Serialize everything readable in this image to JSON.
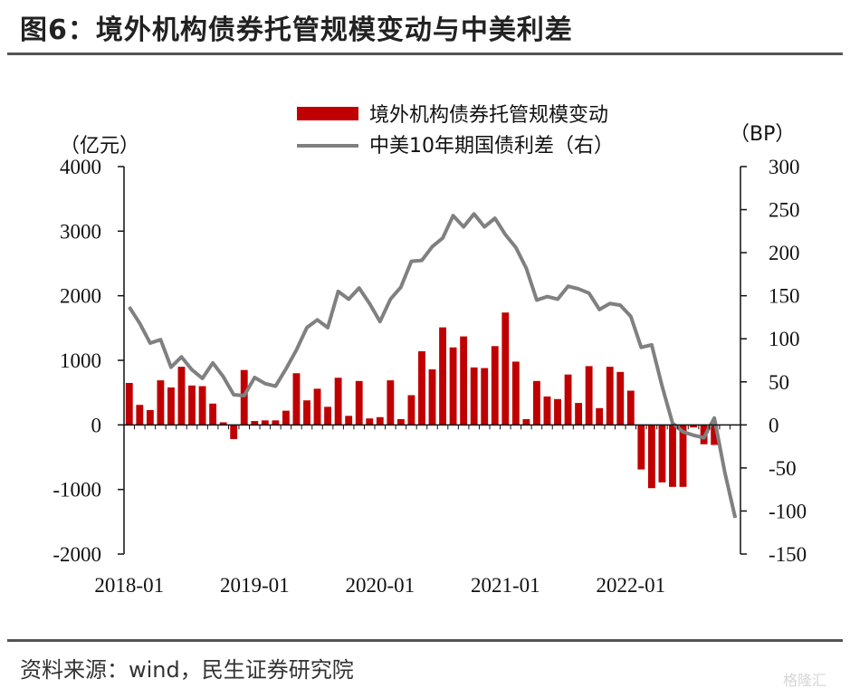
{
  "header": {
    "title": "图6：境外机构债券托管规模变动与中美利差"
  },
  "footer": {
    "source": "资料来源：wind，民生证券研究院",
    "watermark": "格隆汇"
  },
  "chart_data": {
    "type": "bar",
    "left_unit": "（亿元）",
    "right_unit": "（BP）",
    "left_ylim": [
      -2000,
      4000
    ],
    "left_ticks": [
      "4000",
      "3000",
      "2000",
      "1000",
      "0",
      "-1000",
      "-2000"
    ],
    "right_ylim": [
      -150,
      300
    ],
    "right_ticks": [
      "300",
      "250",
      "200",
      "150",
      "100",
      "50",
      "0",
      "-50",
      "-100",
      "-150"
    ],
    "x_tick_labels": [
      "2018-01",
      "2019-01",
      "2020-01",
      "2021-01",
      "2022-01"
    ],
    "legend_position": "top-right",
    "grid": false,
    "categories": [
      "2018-01",
      "2018-02",
      "2018-03",
      "2018-04",
      "2018-05",
      "2018-06",
      "2018-07",
      "2018-08",
      "2018-09",
      "2018-10",
      "2018-11",
      "2018-12",
      "2019-01",
      "2019-02",
      "2019-03",
      "2019-04",
      "2019-05",
      "2019-06",
      "2019-07",
      "2019-08",
      "2019-09",
      "2019-10",
      "2019-11",
      "2019-12",
      "2020-01",
      "2020-02",
      "2020-03",
      "2020-04",
      "2020-05",
      "2020-06",
      "2020-07",
      "2020-08",
      "2020-09",
      "2020-10",
      "2020-11",
      "2020-12",
      "2021-01",
      "2021-02",
      "2021-03",
      "2021-04",
      "2021-05",
      "2021-06",
      "2021-07",
      "2021-08",
      "2021-09",
      "2021-10",
      "2021-11",
      "2021-12",
      "2022-01",
      "2022-02",
      "2022-03",
      "2022-04",
      "2022-05",
      "2022-06",
      "2022-07",
      "2022-08",
      "2022-09",
      "2022-10",
      "2022-11"
    ],
    "series": [
      {
        "name": "境外机构债券托管规模变动",
        "type": "bar",
        "axis": "left",
        "color": "#c00000",
        "values": [
          650,
          310,
          230,
          690,
          580,
          900,
          610,
          600,
          330,
          40,
          -220,
          850,
          60,
          70,
          70,
          220,
          800,
          380,
          560,
          280,
          730,
          140,
          680,
          100,
          120,
          690,
          90,
          460,
          1140,
          860,
          1510,
          1200,
          1370,
          890,
          880,
          1220,
          1740,
          980,
          90,
          680,
          440,
          400,
          780,
          340,
          910,
          260,
          900,
          820,
          530,
          -690,
          -980,
          -890,
          -960,
          -960,
          -40,
          -300,
          -310,
          null,
          null
        ]
      },
      {
        "name": "中美10年期国债利差（右）",
        "type": "line",
        "axis": "right",
        "color": "#808080",
        "values": [
          137,
          118,
          95,
          99,
          67,
          79,
          64,
          54,
          72,
          56,
          35,
          34,
          55,
          48,
          45,
          65,
          87,
          113,
          122,
          113,
          155,
          146,
          159,
          141,
          120,
          146,
          160,
          190,
          191,
          207,
          217,
          243,
          230,
          245,
          230,
          240,
          221,
          206,
          182,
          145,
          149,
          146,
          161,
          158,
          153,
          134,
          141,
          139,
          126,
          90,
          93,
          45,
          2,
          -8,
          -12,
          -15,
          8,
          -55,
          -108
        ]
      }
    ]
  }
}
